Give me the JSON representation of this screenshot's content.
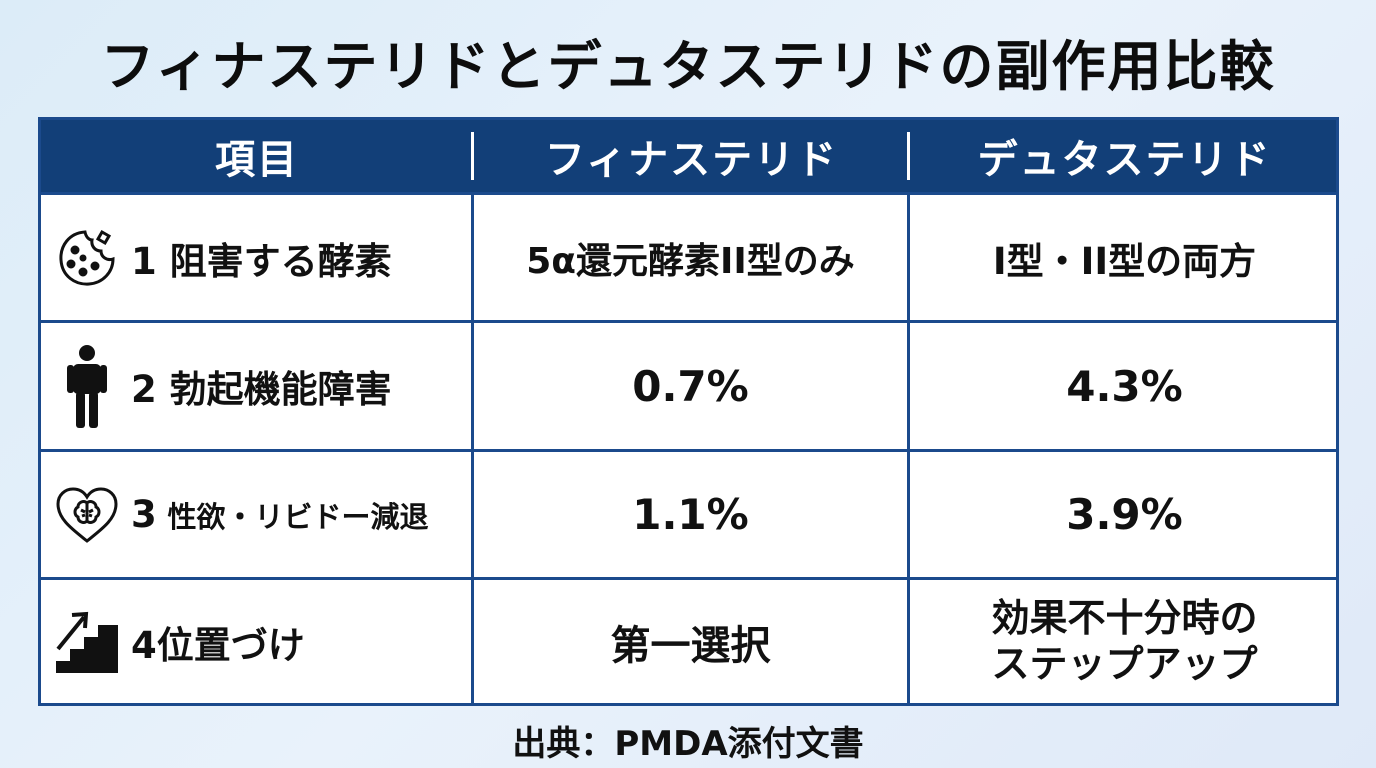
{
  "title": "フィナステリドとデュタステリドの副作用比較",
  "table": {
    "headers": [
      "項目",
      "フィナステリド",
      "デュタステリド"
    ],
    "rows": [
      {
        "icon": "cell-cookie-icon",
        "num": "1",
        "label": "阻害する酵素",
        "finasteride": "5α還元酵素II型のみ",
        "dutasteride": "I型・II型の両方"
      },
      {
        "icon": "person-icon",
        "num": "2",
        "label": "勃起機能障害",
        "finasteride": "0.7%",
        "dutasteride": "4.3%"
      },
      {
        "icon": "heart-brain-icon",
        "num": "3",
        "label": "性欲・リビドー減退",
        "finasteride": "1.1%",
        "dutasteride": "3.9%"
      },
      {
        "icon": "stairs-arrow-icon",
        "num": "4",
        "label": "位置づけ",
        "finasteride": "第一選択",
        "dutasteride_line1": "効果不十分時の",
        "dutasteride_line2": "ステップアップ"
      }
    ]
  },
  "footer": "出典：PMDA添付文書",
  "colors": {
    "header_bg": "#123f78",
    "border": "#1b4a8c",
    "background": "#e3eef9"
  }
}
